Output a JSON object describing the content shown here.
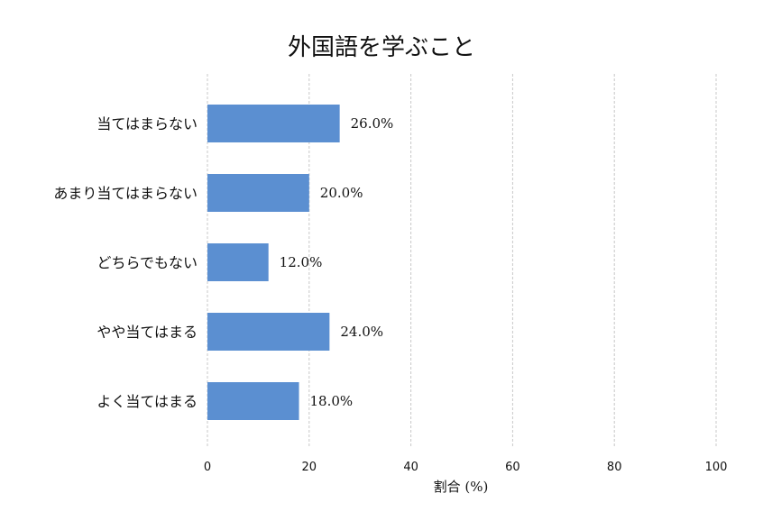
{
  "chart_data": {
    "type": "bar",
    "orientation": "horizontal",
    "title": "外国語を学ぶこと",
    "xlabel": "割合 (%)",
    "ylabel": "",
    "categories": [
      "当てはまらない",
      "あまり当てはまらない",
      "どちらでもない",
      "やや当てはまる",
      "よく当てはまる"
    ],
    "values": [
      26.0,
      20.0,
      12.0,
      24.0,
      18.0
    ],
    "value_labels": [
      "26.0%",
      "20.0%",
      "12.0%",
      "24.0%",
      "18.0%"
    ],
    "xlim": [
      0,
      100
    ],
    "xticks": [
      0,
      20,
      40,
      60,
      80,
      100
    ],
    "xtick_labels": [
      "0",
      "20",
      "40",
      "60",
      "80",
      "100"
    ],
    "grid": "vertical dashed",
    "legend": "none",
    "colors": {
      "bar": "#5b8fd1",
      "grid": "#c8c8c8",
      "text": "#111111"
    }
  }
}
